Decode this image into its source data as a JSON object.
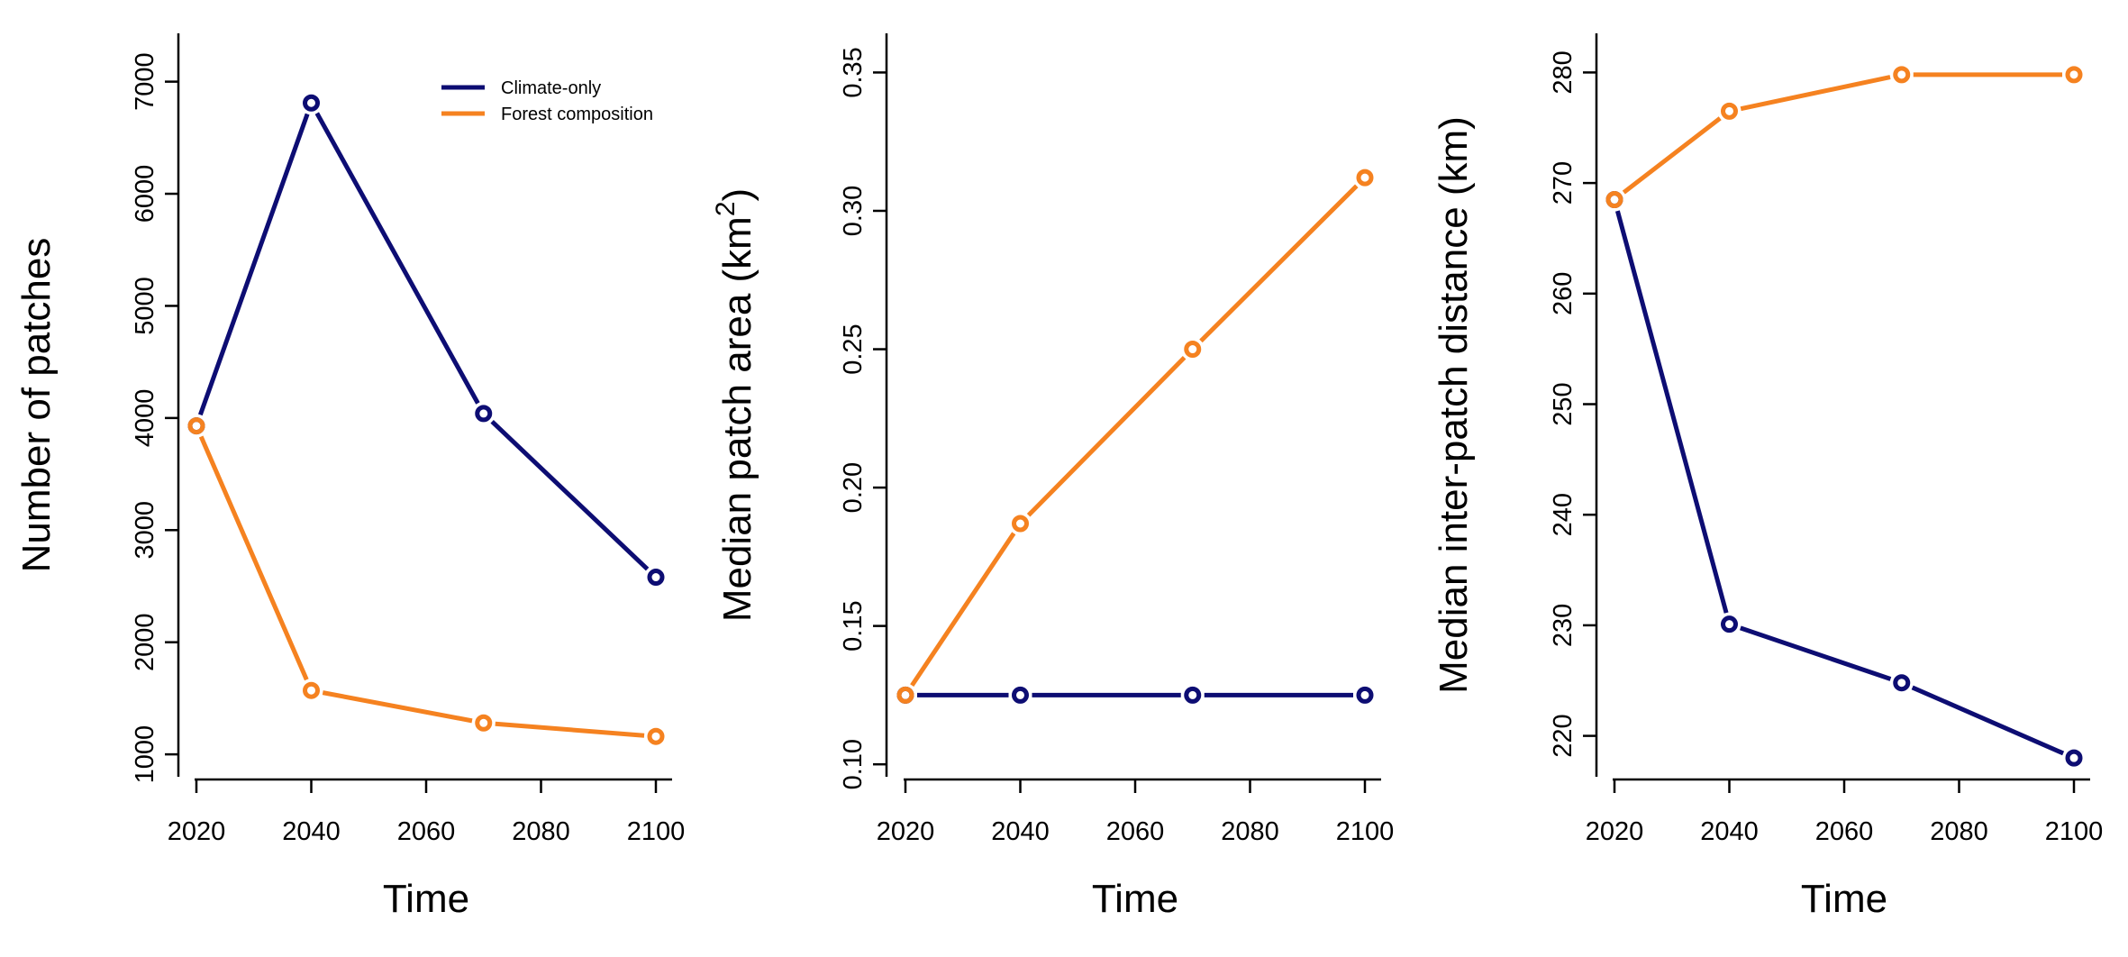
{
  "figure": {
    "panels": 3
  },
  "chart_data": [
    {
      "type": "line",
      "xlabel": "Time",
      "ylabel": "Number of patches",
      "ylabel_sup": "",
      "ylabel_suffix": "",
      "x": [
        2020,
        2040,
        2070,
        2100
      ],
      "xticks": [
        2020,
        2040,
        2060,
        2080,
        2100
      ],
      "xtick_labels": [
        "2020",
        "2040",
        "2060",
        "2080",
        "2100"
      ],
      "xlim": [
        2020,
        2100
      ],
      "yticks": [
        1000,
        2000,
        3000,
        4000,
        5000,
        6000,
        7000
      ],
      "ytick_labels": [
        "1000",
        "2000",
        "3000",
        "4000",
        "5000",
        "6000",
        "7000"
      ],
      "ylim": [
        800,
        7230
      ],
      "grid": false,
      "legend": {
        "placement": "top-right",
        "entries": [
          {
            "name": "Climate-only",
            "color": "#0d0d73"
          },
          {
            "name": "Forest composition",
            "color": "#f58220"
          }
        ]
      },
      "series": [
        {
          "name": "Climate-only",
          "color": "#0d0d73",
          "values": [
            3930,
            6810,
            4040,
            2580
          ]
        },
        {
          "name": "Forest composition",
          "color": "#f58220",
          "values": [
            3930,
            1570,
            1280,
            1160
          ]
        }
      ]
    },
    {
      "type": "line",
      "xlabel": "Time",
      "ylabel": "Median patch area (km",
      "ylabel_sup": "2",
      "ylabel_suffix": ")",
      "x": [
        2020,
        2040,
        2070,
        2100
      ],
      "xticks": [
        2020,
        2040,
        2060,
        2080,
        2100
      ],
      "xtick_labels": [
        "2020",
        "2040",
        "2060",
        "2080",
        "2100"
      ],
      "xlim": [
        2020,
        2100
      ],
      "yticks": [
        0.1,
        0.15,
        0.2,
        0.25,
        0.3,
        0.35
      ],
      "ytick_labels": [
        "0.10",
        "0.15",
        "0.20",
        "0.25",
        "0.30",
        "0.35"
      ],
      "ylim": [
        0.0955,
        0.356
      ],
      "grid": false,
      "series": [
        {
          "name": "Climate-only",
          "color": "#0d0d73",
          "values": [
            0.125,
            0.125,
            0.125,
            0.125
          ]
        },
        {
          "name": "Forest composition",
          "color": "#f58220",
          "values": [
            0.125,
            0.187,
            0.25,
            0.312
          ]
        }
      ]
    },
    {
      "type": "line",
      "xlabel": "Time",
      "ylabel": "Median inter-patch distance (km)",
      "ylabel_sup": "",
      "ylabel_suffix": "",
      "x": [
        2020,
        2040,
        2070,
        2100
      ],
      "xticks": [
        2020,
        2040,
        2060,
        2080,
        2100
      ],
      "xtick_labels": [
        "2020",
        "2040",
        "2060",
        "2080",
        "2100"
      ],
      "xlim": [
        2020,
        2100
      ],
      "yticks": [
        220,
        230,
        240,
        250,
        260,
        270,
        280
      ],
      "ytick_labels": [
        "220",
        "230",
        "240",
        "250",
        "260",
        "270",
        "280"
      ],
      "ylim": [
        216.3,
        281.5
      ],
      "grid": false,
      "series": [
        {
          "name": "Climate-only",
          "color": "#0d0d73",
          "values": [
            268.5,
            230.1,
            224.8,
            218
          ]
        },
        {
          "name": "Forest composition",
          "color": "#f58220",
          "values": [
            268.5,
            276.5,
            279.8,
            279.8
          ]
        }
      ]
    }
  ]
}
